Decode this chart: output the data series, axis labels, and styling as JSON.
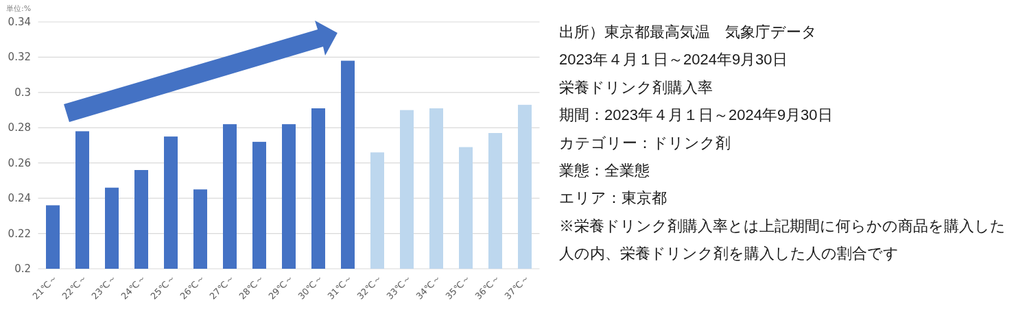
{
  "chart_data": {
    "type": "bar",
    "ylabel": "単位:%",
    "categories": [
      "21℃～",
      "22℃～",
      "23℃～",
      "24℃～",
      "25℃～",
      "26℃～",
      "27℃～",
      "28℃～",
      "29℃～",
      "30℃～",
      "31℃～",
      "32℃～",
      "33℃～",
      "34℃～",
      "35℃～",
      "36℃～",
      "37℃～"
    ],
    "values": [
      0.236,
      0.278,
      0.246,
      0.256,
      0.275,
      0.245,
      0.282,
      0.272,
      0.282,
      0.291,
      0.318,
      0.266,
      0.29,
      0.291,
      0.269,
      0.277,
      0.293
    ],
    "colors": [
      "#4472c4",
      "#4472c4",
      "#4472c4",
      "#4472c4",
      "#4472c4",
      "#4472c4",
      "#4472c4",
      "#4472c4",
      "#4472c4",
      "#4472c4",
      "#4472c4",
      "#bdd7ee",
      "#bdd7ee",
      "#bdd7ee",
      "#bdd7ee",
      "#bdd7ee",
      "#bdd7ee"
    ],
    "ylim": [
      0.2,
      0.34
    ],
    "yticks": [
      0.2,
      0.22,
      0.24,
      0.26,
      0.28,
      0.3,
      0.32,
      0.34
    ],
    "grid": "y",
    "annotations": [
      "出所）東京都最高気温　気象庁データ",
      "2023年４月１日～2024年9月30日",
      "栄養ドリンク剤購入率",
      "期間：2023年４月１日～2024年9月30日",
      "カテゴリー：ドリンク剤",
      "業態：全業態",
      "エリア：東京都",
      "※栄養ドリンク剤購入率とは上記期間に何らかの商品を購入した人の内、栄養ドリンク剤を購入した人の割合です"
    ]
  }
}
